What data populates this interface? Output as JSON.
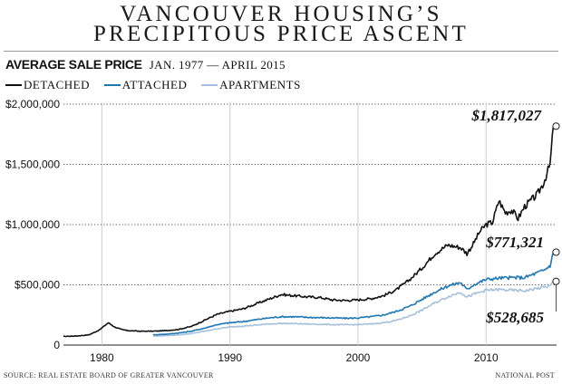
{
  "header": {
    "title_line1": "VANCOUVER HOUSING’S",
    "title_line2": "PRECIPITOUS PRICE ASCENT",
    "subtitle_main": "AVERAGE SALE PRICE",
    "subtitle_date": "JAN. 1977 — APRIL 2015"
  },
  "footer": {
    "source": "SOURCE: REAL ESTATE BOARD OF GREATER VANCOUVER",
    "credit": "NATIONAL POST"
  },
  "colors": {
    "detached": "#111111",
    "attached": "#1f78b4",
    "apartments": "#a6c1dc",
    "grid": "#555555"
  },
  "chart_data": {
    "type": "line",
    "title": "AVERAGE SALE PRICE",
    "subtitle": "JAN. 1977 — APRIL 2015",
    "ylim": [
      0,
      2000000
    ],
    "yticks": [
      0,
      500000,
      1000000,
      1500000,
      2000000
    ],
    "ytick_labels": [
      "0",
      "$500,000",
      "$1,000,000",
      "$1,500,000",
      "$2,000,000"
    ],
    "xlim": [
      1977.0,
      2015.5
    ],
    "xticks": [
      1980,
      1990,
      2000,
      2010
    ],
    "xtick_labels": [
      "1980",
      "1990",
      "2000",
      "2010"
    ],
    "grid": "horizontal dotted",
    "legend_position": "top-left",
    "series": [
      {
        "name": "DETACHED",
        "color": "#111111",
        "end_label": "$1,817,027",
        "x": [
          1977.0,
          1978.0,
          1979.0,
          1979.8,
          1980.5,
          1981.0,
          1981.5,
          1982.0,
          1983.0,
          1984.0,
          1985.0,
          1986.0,
          1987.0,
          1988.0,
          1989.0,
          1990.0,
          1991.0,
          1992.0,
          1993.0,
          1994.0,
          1995.0,
          1996.0,
          1997.0,
          1998.0,
          1999.0,
          2000.0,
          2001.0,
          2002.0,
          2003.0,
          2004.0,
          2005.0,
          2006.0,
          2007.0,
          2008.0,
          2008.5,
          2009.0,
          2009.5,
          2010.0,
          2010.5,
          2011.0,
          2011.5,
          2012.0,
          2012.5,
          2013.0,
          2013.5,
          2014.0,
          2014.5,
          2015.0,
          2015.25
        ],
        "values": [
          72000,
          75000,
          85000,
          125000,
          185000,
          150000,
          130000,
          120000,
          115000,
          115000,
          120000,
          130000,
          155000,
          205000,
          255000,
          280000,
          300000,
          340000,
          380000,
          420000,
          410000,
          400000,
          395000,
          375000,
          370000,
          375000,
          385000,
          410000,
          460000,
          540000,
          640000,
          760000,
          830000,
          810000,
          760000,
          840000,
          940000,
          1000000,
          1020000,
          1200000,
          1100000,
          1120000,
          1050000,
          1150000,
          1200000,
          1250000,
          1350000,
          1500000,
          1817027
        ]
      },
      {
        "name": "ATTACHED",
        "color": "#1f78b4",
        "end_label": "$771,321",
        "x": [
          1984.0,
          1985.0,
          1986.0,
          1987.0,
          1988.0,
          1989.0,
          1990.0,
          1991.0,
          1992.0,
          1993.0,
          1994.0,
          1995.0,
          1996.0,
          1997.0,
          1998.0,
          1999.0,
          2000.0,
          2001.0,
          2002.0,
          2003.0,
          2004.0,
          2005.0,
          2006.0,
          2007.0,
          2008.0,
          2008.5,
          2009.0,
          2010.0,
          2011.0,
          2012.0,
          2013.0,
          2014.0,
          2014.5,
          2015.0,
          2015.25
        ],
        "values": [
          85000,
          90000,
          100000,
          115000,
          140000,
          170000,
          185000,
          195000,
          210000,
          225000,
          235000,
          235000,
          230000,
          228000,
          225000,
          222000,
          225000,
          235000,
          250000,
          280000,
          320000,
          380000,
          440000,
          490000,
          520000,
          460000,
          500000,
          545000,
          555000,
          560000,
          560000,
          600000,
          620000,
          660000,
          771321
        ]
      },
      {
        "name": "APARTMENTS",
        "color": "#a6c1dc",
        "end_label": "$528,685",
        "x": [
          1984.0,
          1985.0,
          1986.0,
          1987.0,
          1988.0,
          1989.0,
          1990.0,
          1991.0,
          1992.0,
          1993.0,
          1994.0,
          1995.0,
          1996.0,
          1997.0,
          1998.0,
          1999.0,
          2000.0,
          2001.0,
          2002.0,
          2003.0,
          2004.0,
          2005.0,
          2006.0,
          2007.0,
          2008.0,
          2008.5,
          2009.0,
          2010.0,
          2011.0,
          2012.0,
          2013.0,
          2014.0,
          2015.0,
          2015.25
        ],
        "values": [
          75000,
          78000,
          85000,
          95000,
          115000,
          135000,
          150000,
          158000,
          165000,
          175000,
          180000,
          178000,
          175000,
          172000,
          170000,
          168000,
          170000,
          175000,
          185000,
          205000,
          240000,
          290000,
          350000,
          400000,
          440000,
          400000,
          420000,
          455000,
          460000,
          455000,
          450000,
          470000,
          490000,
          528685
        ]
      }
    ]
  }
}
